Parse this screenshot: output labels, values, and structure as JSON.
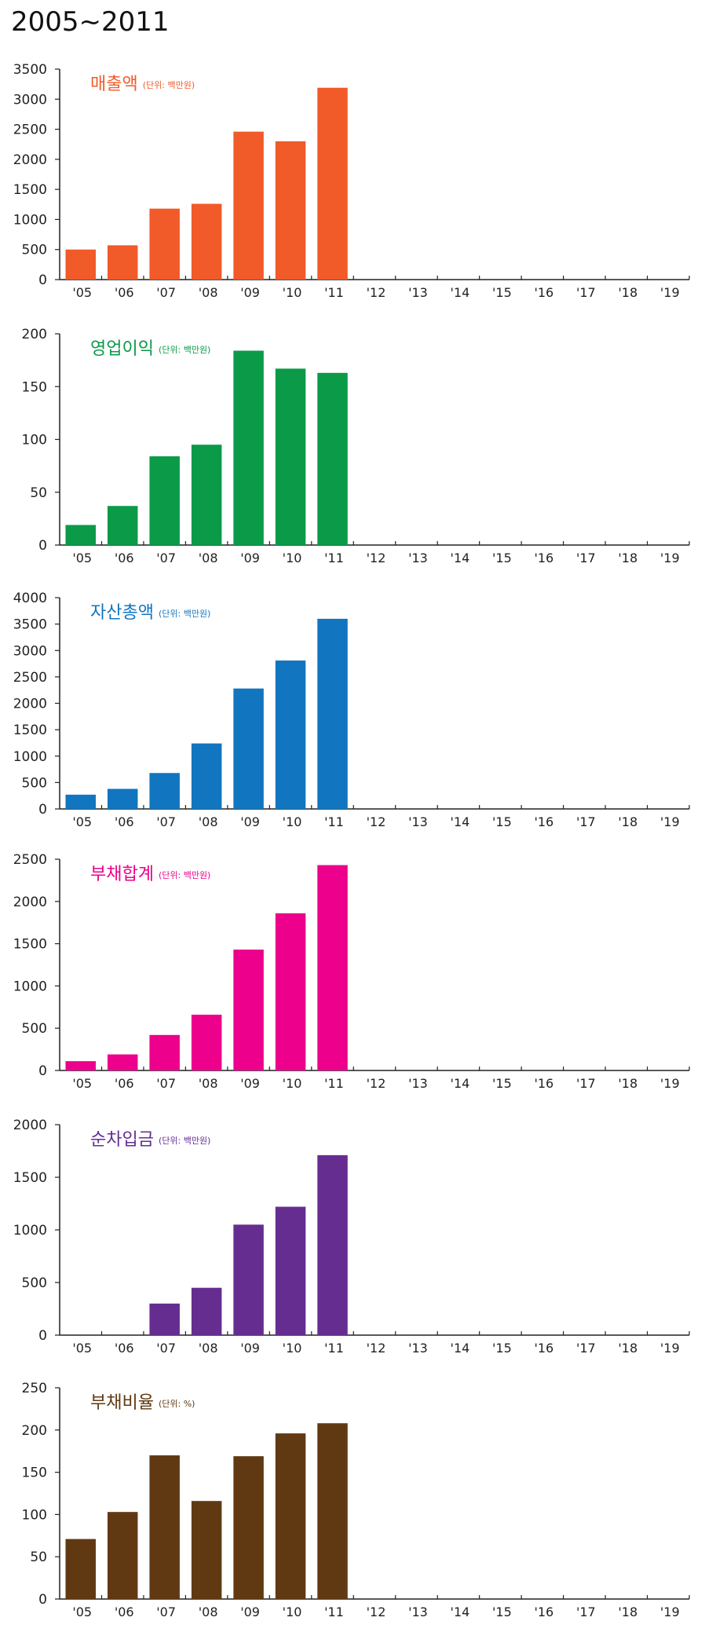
{
  "page": {
    "title": "2005~2011"
  },
  "chart_data": [
    {
      "type": "bar",
      "title": "매출액",
      "unit": "(단위: 백만원)",
      "color": "#f15a29",
      "categories": [
        "'05",
        "'06",
        "'07",
        "'08",
        "'09",
        "'10",
        "'11",
        "'12",
        "'13",
        "'14",
        "'15",
        "'16",
        "'17",
        "'18",
        "'19"
      ],
      "values": [
        500,
        570,
        1180,
        1260,
        2460,
        2300,
        3190,
        null,
        null,
        null,
        null,
        null,
        null,
        null,
        null
      ],
      "ylim": [
        0,
        3500
      ],
      "yticks": [
        0,
        500,
        1000,
        1500,
        2000,
        2500,
        3000,
        3500
      ]
    },
    {
      "type": "bar",
      "title": "영업이익",
      "unit": "(단위: 백만원)",
      "color": "#0a9a48",
      "categories": [
        "'05",
        "'06",
        "'07",
        "'08",
        "'09",
        "'10",
        "'11",
        "'12",
        "'13",
        "'14",
        "'15",
        "'16",
        "'17",
        "'18",
        "'19"
      ],
      "values": [
        19,
        37,
        84,
        95,
        184,
        167,
        163,
        null,
        null,
        null,
        null,
        null,
        null,
        null,
        null
      ],
      "ylim": [
        0,
        200
      ],
      "yticks": [
        0,
        50,
        100,
        150,
        200
      ]
    },
    {
      "type": "bar",
      "title": "자산총액",
      "unit": "(단위: 백만원)",
      "color": "#1175bf",
      "categories": [
        "'05",
        "'06",
        "'07",
        "'08",
        "'09",
        "'10",
        "'11",
        "'12",
        "'13",
        "'14",
        "'15",
        "'16",
        "'17",
        "'18",
        "'19"
      ],
      "values": [
        270,
        380,
        680,
        1240,
        2280,
        2810,
        3600,
        null,
        null,
        null,
        null,
        null,
        null,
        null,
        null
      ],
      "ylim": [
        0,
        4000
      ],
      "yticks": [
        0,
        500,
        1000,
        1500,
        2000,
        2500,
        3000,
        3500,
        4000
      ]
    },
    {
      "type": "bar",
      "title": "부채합계",
      "unit": "(단위: 백만원)",
      "color": "#ec008c",
      "categories": [
        "'05",
        "'06",
        "'07",
        "'08",
        "'09",
        "'10",
        "'11",
        "'12",
        "'13",
        "'14",
        "'15",
        "'16",
        "'17",
        "'18",
        "'19"
      ],
      "values": [
        110,
        190,
        420,
        660,
        1430,
        1860,
        2430,
        null,
        null,
        null,
        null,
        null,
        null,
        null,
        null
      ],
      "ylim": [
        0,
        2500
      ],
      "yticks": [
        0,
        500,
        1000,
        1500,
        2000,
        2500
      ]
    },
    {
      "type": "bar",
      "title": "순차입금",
      "unit": "(단위: 백만원)",
      "color": "#662d91",
      "categories": [
        "'05",
        "'06",
        "'07",
        "'08",
        "'09",
        "'10",
        "'11",
        "'12",
        "'13",
        "'14",
        "'15",
        "'16",
        "'17",
        "'18",
        "'19"
      ],
      "values": [
        null,
        null,
        300,
        450,
        1050,
        1220,
        1710,
        null,
        null,
        null,
        null,
        null,
        null,
        null,
        null
      ],
      "ylim": [
        0,
        2000
      ],
      "yticks": [
        0,
        500,
        1000,
        1500,
        2000
      ]
    },
    {
      "type": "bar",
      "title": "부채비율",
      "unit": "(단위: %)",
      "color": "#603913",
      "categories": [
        "'05",
        "'06",
        "'07",
        "'08",
        "'09",
        "'10",
        "'11",
        "'12",
        "'13",
        "'14",
        "'15",
        "'16",
        "'17",
        "'18",
        "'19"
      ],
      "values": [
        71,
        103,
        170,
        116,
        169,
        196,
        208,
        null,
        null,
        null,
        null,
        null,
        null,
        null,
        null
      ],
      "ylim": [
        0,
        250
      ],
      "yticks": [
        0,
        50,
        100,
        150,
        200,
        250
      ]
    }
  ]
}
